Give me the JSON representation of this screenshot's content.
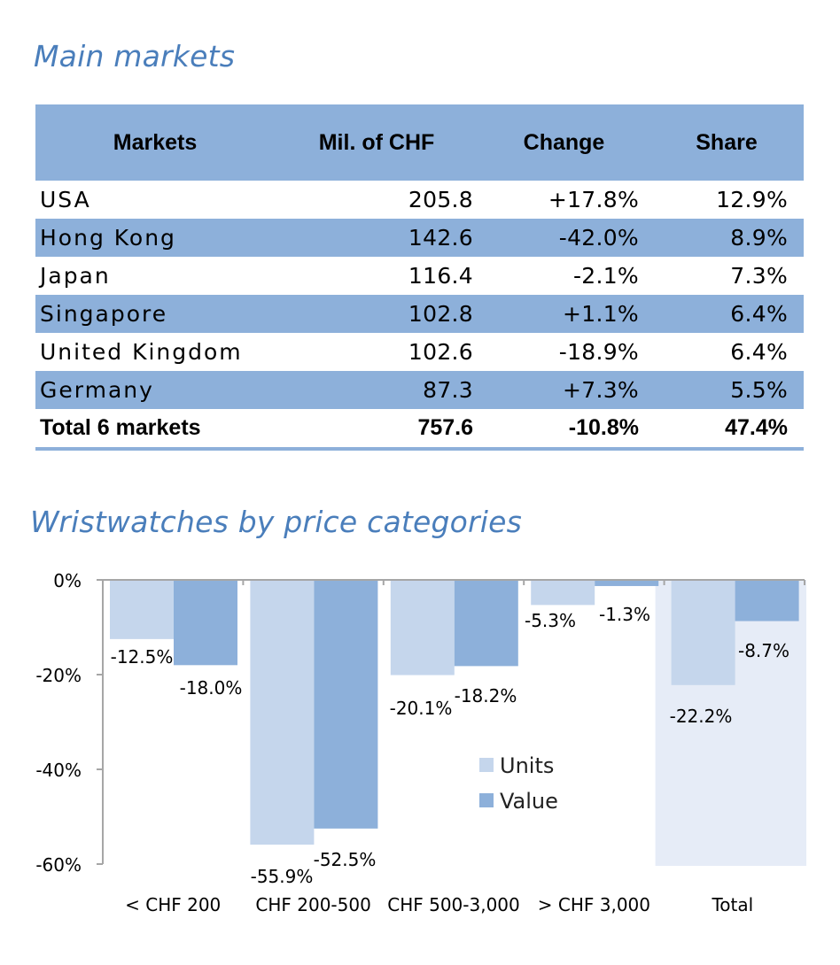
{
  "main_markets": {
    "title": "Main markets",
    "headers": [
      "Markets",
      "Mil. of CHF",
      "Change",
      "Share"
    ],
    "rows": [
      {
        "market": "USA",
        "value": "205.8",
        "change": "+17.8%",
        "share": "12.9%"
      },
      {
        "market": "Hong Kong",
        "value": "142.6",
        "change": "-42.0%",
        "share": "8.9%"
      },
      {
        "market": "Japan",
        "value": "116.4",
        "change": "-2.1%",
        "share": "7.3%"
      },
      {
        "market": "Singapore",
        "value": "102.8",
        "change": "+1.1%",
        "share": "6.4%"
      },
      {
        "market": "United Kingdom",
        "value": "102.6",
        "change": "-18.9%",
        "share": "6.4%"
      },
      {
        "market": "Germany",
        "value": "87.3",
        "change": "+7.3%",
        "share": "5.5%"
      }
    ],
    "total": {
      "market": "Total 6 markets",
      "value": "757.6",
      "change": "-10.8%",
      "share": "47.4%"
    }
  },
  "wristwatches": {
    "title": "Wristwatches by price categories"
  },
  "chart_data": {
    "type": "bar",
    "title": "Wristwatches by price categories",
    "categories": [
      "< CHF 200",
      "CHF 200-500",
      "CHF 500-3,000",
      "> CHF 3,000",
      "Total"
    ],
    "series": [
      {
        "name": "Units",
        "values": [
          -12.5,
          -55.9,
          -20.1,
          -5.3,
          -22.2
        ],
        "labels": [
          "-12.5%",
          "-55.9%",
          "-20.1%",
          "-5.3%",
          "-22.2%"
        ],
        "color": "#c5d6ec"
      },
      {
        "name": "Value",
        "values": [
          -18.0,
          -52.5,
          -18.2,
          -1.3,
          -8.7
        ],
        "labels": [
          "-18.0%",
          "-52.5%",
          "-18.2%",
          "-1.3%",
          "-8.7%"
        ],
        "color": "#8db0da"
      }
    ],
    "yticks": [
      0,
      -20,
      -40,
      -60
    ],
    "ytick_labels": [
      "0%",
      "-20%",
      "-40%",
      "-60%"
    ],
    "ylim": [
      -60,
      0
    ],
    "legend_position": "center",
    "highlight_category": "Total",
    "highlight_color": "#e6ecf7",
    "axis_color": "#a6a6a6"
  }
}
